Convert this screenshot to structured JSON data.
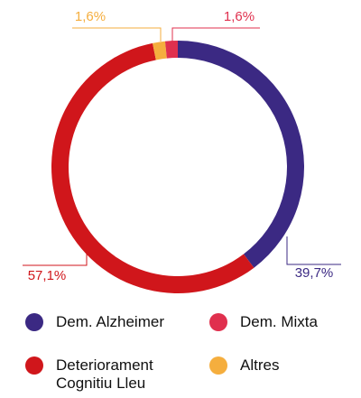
{
  "chart_data": {
    "type": "donut",
    "categories": [
      "Dem. Alzheimer",
      "Deteriorament Cognitiu Lleu",
      "Altres",
      "Dem. Mixta"
    ],
    "values": [
      39.7,
      57.1,
      1.6,
      1.6
    ],
    "value_labels": [
      "39,7%",
      "57,1%",
      "1,6%",
      "1,6%"
    ],
    "colors": [
      "#3b2983",
      "#d0161b",
      "#f5ae3e",
      "#e0304e"
    ],
    "legend": "bottom"
  }
}
